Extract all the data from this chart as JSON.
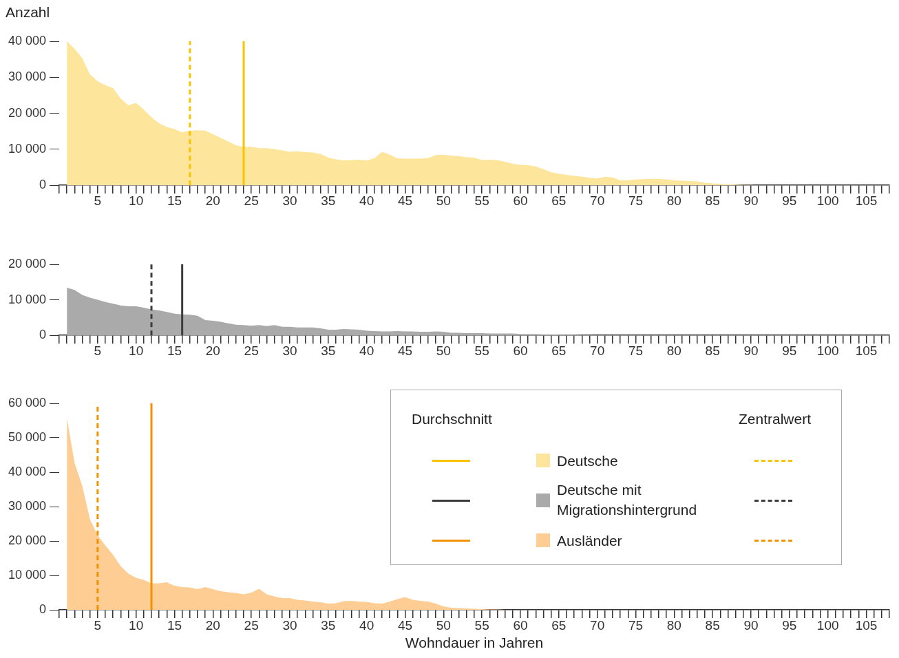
{
  "chart_data": [
    {
      "type": "area",
      "ylabel": "Anzahl",
      "xlim": [
        0,
        108
      ],
      "ylim": [
        0,
        40000
      ],
      "xticks": [
        {
          "value": 0,
          "label": null
        },
        {
          "value": 1,
          "label": null
        },
        {
          "value": 2,
          "label": null
        },
        {
          "value": 3,
          "label": null
        },
        {
          "value": 4,
          "label": null
        },
        5,
        {
          "value": 6,
          "label": null
        },
        {
          "value": 7,
          "label": null
        },
        {
          "value": 8,
          "label": null
        },
        {
          "value": 9,
          "label": null
        },
        10,
        {
          "value": 11,
          "label": null
        },
        {
          "value": 12,
          "label": null
        },
        {
          "value": 13,
          "label": null
        },
        {
          "value": 14,
          "label": null
        },
        15,
        {
          "value": 16,
          "label": null
        },
        {
          "value": 17,
          "label": null
        },
        {
          "value": 18,
          "label": null
        },
        {
          "value": 19,
          "label": null
        },
        20,
        {
          "value": 21,
          "label": null
        },
        {
          "value": 22,
          "label": null
        },
        {
          "value": 23,
          "label": null
        },
        {
          "value": 24,
          "label": null
        },
        25,
        {
          "value": 26,
          "label": null
        },
        {
          "value": 27,
          "label": null
        },
        {
          "value": 28,
          "label": null
        },
        {
          "value": 29,
          "label": null
        },
        30,
        {
          "value": 31,
          "label": null
        },
        {
          "value": 32,
          "label": null
        },
        {
          "value": 33,
          "label": null
        },
        {
          "value": 34,
          "label": null
        },
        35,
        {
          "value": 36,
          "label": null
        },
        {
          "value": 37,
          "label": null
        },
        {
          "value": 38,
          "label": null
        },
        {
          "value": 39,
          "label": null
        },
        40,
        {
          "value": 41,
          "label": null
        },
        {
          "value": 42,
          "label": null
        },
        {
          "value": 43,
          "label": null
        },
        {
          "value": 44,
          "label": null
        },
        45,
        {
          "value": 46,
          "label": null
        },
        {
          "value": 47,
          "label": null
        },
        {
          "value": 48,
          "label": null
        },
        {
          "value": 49,
          "label": null
        },
        50,
        {
          "value": 51,
          "label": null
        },
        {
          "value": 52,
          "label": null
        },
        {
          "value": 53,
          "label": null
        },
        {
          "value": 54,
          "label": null
        },
        55,
        {
          "value": 56,
          "label": null
        },
        {
          "value": 57,
          "label": null
        },
        {
          "value": 58,
          "label": null
        },
        {
          "value": 59,
          "label": null
        },
        60,
        {
          "value": 61,
          "label": null
        },
        {
          "value": 62,
          "label": null
        },
        {
          "value": 63,
          "label": null
        },
        {
          "value": 64,
          "label": null
        },
        65,
        {
          "value": 66,
          "label": null
        },
        {
          "value": 67,
          "label": null
        },
        {
          "value": 68,
          "label": null
        },
        {
          "value": 69,
          "label": null
        },
        70,
        {
          "value": 71,
          "label": null
        },
        {
          "value": 72,
          "label": null
        },
        {
          "value": 73,
          "label": null
        },
        {
          "value": 74,
          "label": null
        },
        75,
        {
          "value": 76,
          "label": null
        },
        {
          "value": 77,
          "label": null
        },
        {
          "value": 78,
          "label": null
        },
        {
          "value": 79,
          "label": null
        },
        80,
        {
          "value": 81,
          "label": null
        },
        {
          "value": 82,
          "label": null
        },
        {
          "value": 83,
          "label": null
        },
        {
          "value": 84,
          "label": null
        },
        85,
        {
          "value": 86,
          "label": null
        },
        {
          "value": 87,
          "label": null
        },
        {
          "value": 88,
          "label": null
        },
        {
          "value": 89,
          "label": null
        },
        90,
        {
          "value": 91,
          "label": null
        },
        {
          "value": 92,
          "label": null
        },
        {
          "value": 93,
          "label": null
        },
        {
          "value": 94,
          "label": null
        },
        95,
        {
          "value": 96,
          "label": null
        },
        {
          "value": 97,
          "label": null
        },
        {
          "value": 98,
          "label": null
        },
        {
          "value": 99,
          "label": null
        },
        100,
        {
          "value": 101,
          "label": null
        },
        {
          "value": 102,
          "label": null
        },
        {
          "value": 103,
          "label": null
        },
        {
          "value": 104,
          "label": null
        },
        105,
        {
          "value": 106,
          "label": null
        },
        {
          "value": 107,
          "label": null
        },
        {
          "value": 108,
          "label": null
        }
      ],
      "yticks": [
        {
          "value": 0,
          "label": "0"
        },
        {
          "value": 10000,
          "label": "10 000"
        },
        {
          "value": 20000,
          "label": "20 000"
        },
        {
          "value": 30000,
          "label": "30 000"
        },
        {
          "value": 40000,
          "label": "40 000"
        }
      ],
      "series": [
        {
          "name": "Deutsche",
          "color": "#fde59c",
          "x": [
            1,
            2,
            3,
            4,
            5,
            6,
            7,
            8,
            9,
            10,
            11,
            12,
            13,
            14,
            15,
            16,
            17,
            18,
            19,
            20,
            21,
            22,
            23,
            24,
            25,
            26,
            27,
            28,
            29,
            30,
            31,
            32,
            33,
            34,
            35,
            36,
            37,
            38,
            39,
            40,
            41,
            42,
            43,
            44,
            45,
            46,
            47,
            48,
            49,
            50,
            51,
            52,
            53,
            54,
            55,
            56,
            57,
            58,
            59,
            60,
            61,
            62,
            63,
            64,
            65,
            66,
            67,
            68,
            69,
            70,
            71,
            72,
            73,
            74,
            75,
            76,
            77,
            78,
            79,
            80,
            81,
            82,
            83,
            84,
            85,
            86,
            87,
            88,
            89,
            90,
            91,
            92
          ],
          "values": [
            40000,
            37900,
            35300,
            30800,
            28900,
            27800,
            27000,
            24100,
            22200,
            22900,
            21000,
            18900,
            17200,
            16200,
            15600,
            14700,
            15200,
            15300,
            15200,
            14200,
            13200,
            12200,
            11100,
            10700,
            10700,
            10300,
            10300,
            10100,
            9700,
            9300,
            9400,
            9200,
            9100,
            8700,
            7700,
            7200,
            6900,
            7000,
            7100,
            6900,
            7500,
            9300,
            8500,
            7500,
            7400,
            7400,
            7400,
            7600,
            8400,
            8500,
            8200,
            8100,
            7800,
            7700,
            7000,
            7100,
            7000,
            6500,
            6000,
            5700,
            5600,
            5200,
            4500,
            3600,
            3200,
            2900,
            2600,
            2400,
            2100,
            1900,
            2400,
            2200,
            1400,
            1400,
            1600,
            1700,
            1800,
            1800,
            1600,
            1400,
            1300,
            1200,
            1100,
            700,
            500,
            400,
            300,
            200,
            100,
            100,
            0,
            0
          ]
        }
      ],
      "ref_lines": [
        {
          "axis": "x",
          "value": 24,
          "color": "#f9c300",
          "line_style": "solid"
        },
        {
          "axis": "x",
          "value": 17,
          "color": "#f9c300",
          "line_style": "dashed"
        }
      ],
      "grid": false,
      "legend": "bottom right"
    },
    {
      "type": "area",
      "xlim": [
        0,
        108
      ],
      "ylim": [
        0,
        20000
      ],
      "xticks": [
        {
          "value": 0,
          "label": null
        },
        {
          "value": 1,
          "label": null
        },
        {
          "value": 2,
          "label": null
        },
        {
          "value": 3,
          "label": null
        },
        {
          "value": 4,
          "label": null
        },
        5,
        {
          "value": 6,
          "label": null
        },
        {
          "value": 7,
          "label": null
        },
        {
          "value": 8,
          "label": null
        },
        {
          "value": 9,
          "label": null
        },
        10,
        {
          "value": 11,
          "label": null
        },
        {
          "value": 12,
          "label": null
        },
        {
          "value": 13,
          "label": null
        },
        {
          "value": 14,
          "label": null
        },
        15,
        {
          "value": 16,
          "label": null
        },
        {
          "value": 17,
          "label": null
        },
        {
          "value": 18,
          "label": null
        },
        {
          "value": 19,
          "label": null
        },
        20,
        {
          "value": 21,
          "label": null
        },
        {
          "value": 22,
          "label": null
        },
        {
          "value": 23,
          "label": null
        },
        {
          "value": 24,
          "label": null
        },
        25,
        {
          "value": 26,
          "label": null
        },
        {
          "value": 27,
          "label": null
        },
        {
          "value": 28,
          "label": null
        },
        {
          "value": 29,
          "label": null
        },
        30,
        {
          "value": 31,
          "label": null
        },
        {
          "value": 32,
          "label": null
        },
        {
          "value": 33,
          "label": null
        },
        {
          "value": 34,
          "label": null
        },
        35,
        {
          "value": 36,
          "label": null
        },
        {
          "value": 37,
          "label": null
        },
        {
          "value": 38,
          "label": null
        },
        {
          "value": 39,
          "label": null
        },
        40,
        {
          "value": 41,
          "label": null
        },
        {
          "value": 42,
          "label": null
        },
        {
          "value": 43,
          "label": null
        },
        {
          "value": 44,
          "label": null
        },
        45,
        {
          "value": 46,
          "label": null
        },
        {
          "value": 47,
          "label": null
        },
        {
          "value": 48,
          "label": null
        },
        {
          "value": 49,
          "label": null
        },
        50,
        {
          "value": 51,
          "label": null
        },
        {
          "value": 52,
          "label": null
        },
        {
          "value": 53,
          "label": null
        },
        {
          "value": 54,
          "label": null
        },
        55,
        {
          "value": 56,
          "label": null
        },
        {
          "value": 57,
          "label": null
        },
        {
          "value": 58,
          "label": null
        },
        {
          "value": 59,
          "label": null
        },
        60,
        {
          "value": 61,
          "label": null
        },
        {
          "value": 62,
          "label": null
        },
        {
          "value": 63,
          "label": null
        },
        {
          "value": 64,
          "label": null
        },
        65,
        {
          "value": 66,
          "label": null
        },
        {
          "value": 67,
          "label": null
        },
        {
          "value": 68,
          "label": null
        },
        {
          "value": 69,
          "label": null
        },
        70,
        {
          "value": 71,
          "label": null
        },
        {
          "value": 72,
          "label": null
        },
        {
          "value": 73,
          "label": null
        },
        {
          "value": 74,
          "label": null
        },
        75,
        {
          "value": 76,
          "label": null
        },
        {
          "value": 77,
          "label": null
        },
        {
          "value": 78,
          "label": null
        },
        {
          "value": 79,
          "label": null
        },
        80,
        {
          "value": 81,
          "label": null
        },
        {
          "value": 82,
          "label": null
        },
        {
          "value": 83,
          "label": null
        },
        {
          "value": 84,
          "label": null
        },
        85,
        {
          "value": 86,
          "label": null
        },
        {
          "value": 87,
          "label": null
        },
        {
          "value": 88,
          "label": null
        },
        {
          "value": 89,
          "label": null
        },
        90,
        {
          "value": 91,
          "label": null
        },
        {
          "value": 92,
          "label": null
        },
        {
          "value": 93,
          "label": null
        },
        {
          "value": 94,
          "label": null
        },
        95,
        {
          "value": 96,
          "label": null
        },
        {
          "value": 97,
          "label": null
        },
        {
          "value": 98,
          "label": null
        },
        {
          "value": 99,
          "label": null
        },
        100,
        {
          "value": 101,
          "label": null
        },
        {
          "value": 102,
          "label": null
        },
        {
          "value": 103,
          "label": null
        },
        {
          "value": 104,
          "label": null
        },
        105,
        {
          "value": 106,
          "label": null
        },
        {
          "value": 107,
          "label": null
        },
        {
          "value": 108,
          "label": null
        }
      ],
      "yticks": [
        {
          "value": 0,
          "label": "0"
        },
        {
          "value": 10000,
          "label": "10 000"
        },
        {
          "value": 20000,
          "label": "20 000"
        }
      ],
      "series": [
        {
          "name": "Deutsche mit Migrationshintergrund",
          "color": "#aaaaaa",
          "x": [
            1,
            2,
            3,
            4,
            5,
            6,
            7,
            8,
            9,
            10,
            11,
            12,
            13,
            14,
            15,
            16,
            17,
            18,
            19,
            20,
            21,
            22,
            23,
            24,
            25,
            26,
            27,
            28,
            29,
            30,
            31,
            32,
            33,
            34,
            35,
            36,
            37,
            38,
            39,
            40,
            41,
            42,
            43,
            44,
            45,
            46,
            47,
            48,
            49,
            50,
            51,
            52,
            53,
            54,
            55,
            56,
            57,
            58,
            59,
            60,
            61,
            62,
            63,
            64,
            65,
            66,
            67,
            68,
            69,
            70,
            71
          ],
          "values": [
            13400,
            12800,
            11400,
            10600,
            10000,
            9400,
            8900,
            8400,
            8200,
            8200,
            7800,
            7300,
            7000,
            6600,
            6100,
            5900,
            5800,
            5500,
            4300,
            4100,
            3800,
            3400,
            3000,
            2900,
            2700,
            2900,
            2600,
            2900,
            2400,
            2400,
            2200,
            2200,
            2200,
            2000,
            1600,
            1600,
            1800,
            1700,
            1600,
            1300,
            1200,
            1100,
            1100,
            1200,
            1100,
            1100,
            1000,
            1000,
            1100,
            1000,
            700,
            700,
            600,
            600,
            600,
            500,
            500,
            500,
            500,
            400,
            400,
            400,
            300,
            300,
            200,
            200,
            200,
            100,
            100,
            0,
            0
          ]
        }
      ],
      "ref_lines": [
        {
          "axis": "x",
          "value": 16,
          "color": "#3c3c3c",
          "line_style": "solid"
        },
        {
          "axis": "x",
          "value": 12,
          "color": "#3c3c3c",
          "line_style": "dashed"
        }
      ],
      "grid": false,
      "legend": "bottom right"
    },
    {
      "type": "area",
      "xlabel": "Wohndauer in Jahren",
      "xlim": [
        0,
        108
      ],
      "ylim": [
        0,
        60000
      ],
      "xticks": [
        {
          "value": 0,
          "label": null
        },
        {
          "value": 1,
          "label": null
        },
        {
          "value": 2,
          "label": null
        },
        {
          "value": 3,
          "label": null
        },
        {
          "value": 4,
          "label": null
        },
        5,
        {
          "value": 6,
          "label": null
        },
        {
          "value": 7,
          "label": null
        },
        {
          "value": 8,
          "label": null
        },
        {
          "value": 9,
          "label": null
        },
        10,
        {
          "value": 11,
          "label": null
        },
        {
          "value": 12,
          "label": null
        },
        {
          "value": 13,
          "label": null
        },
        {
          "value": 14,
          "label": null
        },
        15,
        {
          "value": 16,
          "label": null
        },
        {
          "value": 17,
          "label": null
        },
        {
          "value": 18,
          "label": null
        },
        {
          "value": 19,
          "label": null
        },
        20,
        {
          "value": 21,
          "label": null
        },
        {
          "value": 22,
          "label": null
        },
        {
          "value": 23,
          "label": null
        },
        {
          "value": 24,
          "label": null
        },
        25,
        {
          "value": 26,
          "label": null
        },
        {
          "value": 27,
          "label": null
        },
        {
          "value": 28,
          "label": null
        },
        {
          "value": 29,
          "label": null
        },
        30,
        {
          "value": 31,
          "label": null
        },
        {
          "value": 32,
          "label": null
        },
        {
          "value": 33,
          "label": null
        },
        {
          "value": 34,
          "label": null
        },
        35,
        {
          "value": 36,
          "label": null
        },
        {
          "value": 37,
          "label": null
        },
        {
          "value": 38,
          "label": null
        },
        {
          "value": 39,
          "label": null
        },
        40,
        {
          "value": 41,
          "label": null
        },
        {
          "value": 42,
          "label": null
        },
        {
          "value": 43,
          "label": null
        },
        {
          "value": 44,
          "label": null
        },
        45,
        {
          "value": 46,
          "label": null
        },
        {
          "value": 47,
          "label": null
        },
        {
          "value": 48,
          "label": null
        },
        {
          "value": 49,
          "label": null
        },
        50,
        {
          "value": 51,
          "label": null
        },
        {
          "value": 52,
          "label": null
        },
        {
          "value": 53,
          "label": null
        },
        {
          "value": 54,
          "label": null
        },
        55,
        {
          "value": 56,
          "label": null
        },
        {
          "value": 57,
          "label": null
        },
        {
          "value": 58,
          "label": null
        },
        {
          "value": 59,
          "label": null
        },
        60,
        {
          "value": 61,
          "label": null
        },
        {
          "value": 62,
          "label": null
        },
        {
          "value": 63,
          "label": null
        },
        {
          "value": 64,
          "label": null
        },
        65,
        {
          "value": 66,
          "label": null
        },
        {
          "value": 67,
          "label": null
        },
        {
          "value": 68,
          "label": null
        },
        {
          "value": 69,
          "label": null
        },
        70,
        {
          "value": 71,
          "label": null
        },
        {
          "value": 72,
          "label": null
        },
        {
          "value": 73,
          "label": null
        },
        {
          "value": 74,
          "label": null
        },
        75,
        {
          "value": 76,
          "label": null
        },
        {
          "value": 77,
          "label": null
        },
        {
          "value": 78,
          "label": null
        },
        {
          "value": 79,
          "label": null
        },
        80,
        {
          "value": 81,
          "label": null
        },
        {
          "value": 82,
          "label": null
        },
        {
          "value": 83,
          "label": null
        },
        {
          "value": 84,
          "label": null
        },
        85,
        {
          "value": 86,
          "label": null
        },
        {
          "value": 87,
          "label": null
        },
        {
          "value": 88,
          "label": null
        },
        {
          "value": 89,
          "label": null
        },
        90,
        {
          "value": 91,
          "label": null
        },
        {
          "value": 92,
          "label": null
        },
        {
          "value": 93,
          "label": null
        },
        {
          "value": 94,
          "label": null
        },
        95,
        {
          "value": 96,
          "label": null
        },
        {
          "value": 97,
          "label": null
        },
        {
          "value": 98,
          "label": null
        },
        {
          "value": 99,
          "label": null
        },
        100,
        {
          "value": 101,
          "label": null
        },
        {
          "value": 102,
          "label": null
        },
        {
          "value": 103,
          "label": null
        },
        {
          "value": 104,
          "label": null
        },
        105,
        {
          "value": 106,
          "label": null
        },
        {
          "value": 107,
          "label": null
        },
        {
          "value": 108,
          "label": null
        }
      ],
      "yticks": [
        {
          "value": 0,
          "label": "0"
        },
        {
          "value": 10000,
          "label": "10 000"
        },
        {
          "value": 20000,
          "label": "20 000"
        },
        {
          "value": 30000,
          "label": "30 000"
        },
        {
          "value": 40000,
          "label": "40 000"
        },
        {
          "value": 50000,
          "label": "50 000"
        },
        {
          "value": 60000,
          "label": "60 000"
        }
      ],
      "series": [
        {
          "name": "Ausländer",
          "color": "#fdcd94",
          "x": [
            1,
            2,
            3,
            4,
            5,
            6,
            7,
            8,
            9,
            10,
            11,
            12,
            13,
            14,
            15,
            16,
            17,
            18,
            19,
            20,
            21,
            22,
            23,
            24,
            25,
            26,
            27,
            28,
            29,
            30,
            31,
            32,
            33,
            34,
            35,
            36,
            37,
            38,
            39,
            40,
            41,
            42,
            43,
            44,
            45,
            46,
            47,
            48,
            49,
            50,
            51,
            52,
            53,
            54,
            55,
            56,
            57,
            58,
            59
          ],
          "values": [
            55700,
            42700,
            36000,
            26300,
            21700,
            18700,
            16000,
            12700,
            10500,
            9300,
            8700,
            7700,
            7700,
            8000,
            7000,
            6600,
            6500,
            6000,
            6600,
            6000,
            5400,
            5100,
            4900,
            4500,
            5000,
            6100,
            4500,
            3900,
            3400,
            3400,
            2900,
            2700,
            2400,
            2200,
            1800,
            1900,
            2500,
            2600,
            2400,
            2300,
            1900,
            1800,
            2400,
            3100,
            3700,
            2900,
            2600,
            2400,
            1800,
            1000,
            600,
            500,
            400,
            300,
            200,
            100,
            100,
            0,
            0
          ]
        }
      ],
      "ref_lines": [
        {
          "axis": "x",
          "value": 12,
          "color": "#f39200",
          "line_style": "solid"
        },
        {
          "axis": "x",
          "value": 5,
          "color": "#f39200",
          "line_style": "dashed"
        }
      ],
      "annotations": [
        "Durchschnitt",
        "Zentralwert"
      ],
      "grid": false,
      "legend": "right"
    }
  ]
}
